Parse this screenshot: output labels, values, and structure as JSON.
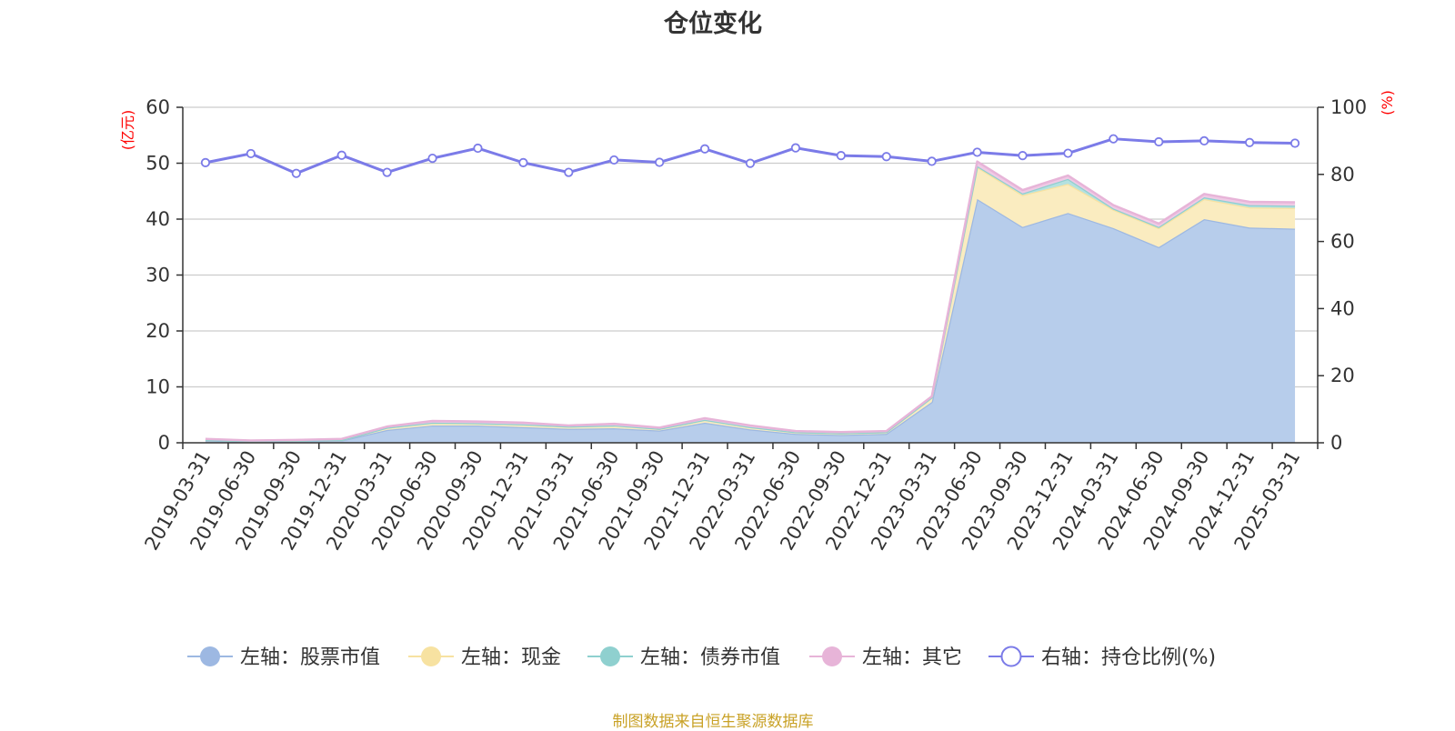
{
  "chart_data": {
    "type": "area",
    "title": "仓位变化",
    "left_axis_unit": "(亿元)",
    "right_axis_unit": "(%)",
    "left_ylim": [
      0,
      60
    ],
    "left_ticks": [
      0,
      10,
      20,
      30,
      40,
      50,
      60
    ],
    "right_ylim": [
      0,
      100
    ],
    "right_ticks": [
      0,
      20,
      40,
      60,
      80,
      100
    ],
    "grid": true,
    "legend_position": "bottom",
    "categories": [
      "2019-03-31",
      "2019-06-30",
      "2019-09-30",
      "2019-12-31",
      "2020-03-31",
      "2020-06-30",
      "2020-09-30",
      "2020-12-31",
      "2021-03-31",
      "2021-06-30",
      "2021-09-30",
      "2021-12-31",
      "2022-03-31",
      "2022-06-30",
      "2022-09-30",
      "2022-12-31",
      "2023-03-31",
      "2023-06-30",
      "2023-09-30",
      "2023-12-31",
      "2024-03-31",
      "2024-06-30",
      "2024-09-30",
      "2024-12-31",
      "2025-03-31"
    ],
    "series": [
      {
        "name": "左轴：股票市值",
        "axis": "left",
        "kind": "stacked-area",
        "color": "#9db8e2",
        "fill": "#b7cdeb",
        "values": [
          0.4,
          0.2,
          0.3,
          0.4,
          2.3,
          3.1,
          3.1,
          2.8,
          2.5,
          2.6,
          2.2,
          3.6,
          2.4,
          1.6,
          1.4,
          1.6,
          7.3,
          43.6,
          38.6,
          41.1,
          38.4,
          35.0,
          40.0,
          38.5,
          38.3
        ]
      },
      {
        "name": "左轴：现金",
        "axis": "left",
        "kind": "stacked-area",
        "color": "#f7e2a1",
        "fill": "#faecc0",
        "values": [
          0.1,
          0.1,
          0.1,
          0.1,
          0.4,
          0.5,
          0.4,
          0.5,
          0.4,
          0.5,
          0.3,
          0.5,
          0.4,
          0.3,
          0.3,
          0.3,
          0.8,
          5.7,
          5.7,
          5.2,
          3.3,
          3.4,
          3.6,
          3.6,
          3.7
        ]
      },
      {
        "name": "左轴：债券市值",
        "axis": "left",
        "kind": "stacked-area",
        "color": "#8fd0cf",
        "fill": "#b4e1e0",
        "values": [
          0.0,
          0.0,
          0.0,
          0.0,
          0.0,
          0.0,
          0.0,
          0.0,
          0.0,
          0.0,
          0.0,
          0.0,
          0.0,
          0.0,
          0.0,
          0.0,
          0.0,
          0.2,
          0.3,
          0.9,
          0.2,
          0.2,
          0.3,
          0.4,
          0.4
        ]
      },
      {
        "name": "左轴：其它",
        "axis": "left",
        "kind": "stacked-area",
        "color": "#e7b4d8",
        "fill": "#efcae5",
        "values": [
          0.2,
          0.1,
          0.1,
          0.2,
          0.2,
          0.3,
          0.3,
          0.3,
          0.2,
          0.3,
          0.2,
          0.3,
          0.3,
          0.2,
          0.2,
          0.2,
          0.2,
          0.8,
          0.6,
          0.6,
          0.6,
          0.6,
          0.6,
          0.6,
          0.6
        ]
      },
      {
        "name": "右轴：持仓比例(%)",
        "axis": "right",
        "kind": "line",
        "color": "#7b7be8",
        "values": [
          83.5,
          86.2,
          80.3,
          85.7,
          80.6,
          84.8,
          87.8,
          83.5,
          80.6,
          84.3,
          83.6,
          87.6,
          83.3,
          87.9,
          85.6,
          85.3,
          83.9,
          86.6,
          85.6,
          86.3,
          90.6,
          89.7,
          90.0,
          89.5,
          89.3
        ]
      }
    ]
  },
  "footer": {
    "source": "制图数据来自恒生聚源数据库"
  }
}
